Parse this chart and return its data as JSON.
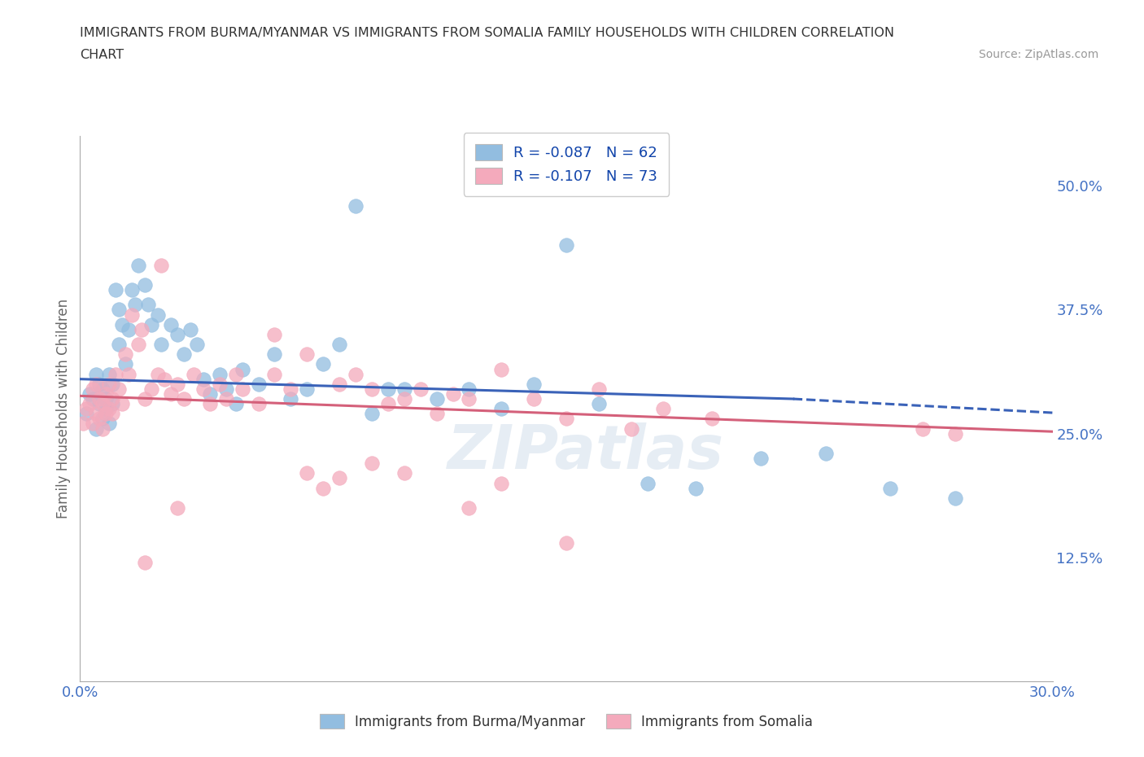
{
  "title_line1": "IMMIGRANTS FROM BURMA/MYANMAR VS IMMIGRANTS FROM SOMALIA FAMILY HOUSEHOLDS WITH CHILDREN CORRELATION",
  "title_line2": "CHART",
  "source": "Source: ZipAtlas.com",
  "xlabel": "Immigrants from Burma/Myanmar",
  "ylabel": "Family Households with Children",
  "xlim": [
    0.0,
    0.3
  ],
  "ylim": [
    0.0,
    0.55
  ],
  "yticks": [
    0.0,
    0.125,
    0.25,
    0.375,
    0.5
  ],
  "ytick_labels": [
    "",
    "12.5%",
    "25.0%",
    "37.5%",
    "50.0%"
  ],
  "xticks": [
    0.0,
    0.05,
    0.1,
    0.15,
    0.2,
    0.25,
    0.3
  ],
  "legend_r1": "R = -0.087",
  "legend_n1": "N = 62",
  "legend_r2": "R = -0.107",
  "legend_n2": "N = 73",
  "blue_color": "#92BDE0",
  "pink_color": "#F4AABC",
  "blue_line_color": "#3A62B8",
  "pink_line_color": "#D4607A",
  "r1": -0.087,
  "n1": 62,
  "r2": -0.107,
  "n2": 73,
  "watermark": "ZIPatlas",
  "grid_color": "#CCCCCC",
  "title_color": "#333333",
  "axis_label_color": "#666666",
  "tick_color": "#4472C4",
  "background_color": "#FFFFFF",
  "blue_scatter": {
    "x": [
      0.002,
      0.003,
      0.004,
      0.005,
      0.005,
      0.006,
      0.006,
      0.007,
      0.007,
      0.008,
      0.008,
      0.009,
      0.009,
      0.01,
      0.01,
      0.011,
      0.012,
      0.012,
      0.013,
      0.014,
      0.015,
      0.016,
      0.017,
      0.018,
      0.02,
      0.021,
      0.022,
      0.024,
      0.025,
      0.028,
      0.03,
      0.032,
      0.034,
      0.036,
      0.038,
      0.04,
      0.043,
      0.045,
      0.048,
      0.05,
      0.055,
      0.06,
      0.065,
      0.07,
      0.075,
      0.08,
      0.085,
      0.09,
      0.095,
      0.1,
      0.11,
      0.12,
      0.13,
      0.14,
      0.15,
      0.16,
      0.175,
      0.19,
      0.21,
      0.23,
      0.25,
      0.27
    ],
    "y": [
      0.27,
      0.29,
      0.285,
      0.31,
      0.255,
      0.28,
      0.3,
      0.265,
      0.295,
      0.285,
      0.275,
      0.31,
      0.26,
      0.3,
      0.28,
      0.395,
      0.375,
      0.34,
      0.36,
      0.32,
      0.355,
      0.395,
      0.38,
      0.42,
      0.4,
      0.38,
      0.36,
      0.37,
      0.34,
      0.36,
      0.35,
      0.33,
      0.355,
      0.34,
      0.305,
      0.29,
      0.31,
      0.295,
      0.28,
      0.315,
      0.3,
      0.33,
      0.285,
      0.295,
      0.32,
      0.34,
      0.48,
      0.27,
      0.295,
      0.295,
      0.285,
      0.295,
      0.275,
      0.3,
      0.44,
      0.28,
      0.2,
      0.195,
      0.225,
      0.23,
      0.195,
      0.185
    ]
  },
  "pink_scatter": {
    "x": [
      0.001,
      0.002,
      0.003,
      0.004,
      0.004,
      0.005,
      0.005,
      0.006,
      0.006,
      0.007,
      0.007,
      0.008,
      0.008,
      0.009,
      0.009,
      0.01,
      0.01,
      0.011,
      0.012,
      0.013,
      0.014,
      0.015,
      0.016,
      0.018,
      0.019,
      0.02,
      0.022,
      0.024,
      0.026,
      0.028,
      0.03,
      0.032,
      0.035,
      0.038,
      0.04,
      0.043,
      0.045,
      0.048,
      0.05,
      0.055,
      0.06,
      0.065,
      0.07,
      0.075,
      0.08,
      0.085,
      0.09,
      0.095,
      0.1,
      0.105,
      0.11,
      0.115,
      0.12,
      0.13,
      0.14,
      0.15,
      0.16,
      0.17,
      0.18,
      0.195,
      0.02,
      0.025,
      0.03,
      0.06,
      0.07,
      0.08,
      0.09,
      0.1,
      0.12,
      0.13,
      0.15,
      0.26,
      0.27
    ],
    "y": [
      0.26,
      0.275,
      0.28,
      0.295,
      0.26,
      0.27,
      0.3,
      0.265,
      0.285,
      0.28,
      0.255,
      0.29,
      0.27,
      0.275,
      0.3,
      0.285,
      0.27,
      0.31,
      0.295,
      0.28,
      0.33,
      0.31,
      0.37,
      0.34,
      0.355,
      0.285,
      0.295,
      0.31,
      0.305,
      0.29,
      0.3,
      0.285,
      0.31,
      0.295,
      0.28,
      0.3,
      0.285,
      0.31,
      0.295,
      0.28,
      0.31,
      0.295,
      0.33,
      0.195,
      0.3,
      0.31,
      0.295,
      0.28,
      0.285,
      0.295,
      0.27,
      0.29,
      0.285,
      0.315,
      0.285,
      0.265,
      0.295,
      0.255,
      0.275,
      0.265,
      0.12,
      0.42,
      0.175,
      0.35,
      0.21,
      0.205,
      0.22,
      0.21,
      0.175,
      0.2,
      0.14,
      0.255,
      0.25
    ]
  },
  "blue_line": {
    "x0": 0.0,
    "x1": 0.22,
    "x2": 0.3,
    "y0": 0.305,
    "y1": 0.285,
    "y2": 0.271
  },
  "pink_line": {
    "x0": 0.0,
    "x1": 0.3,
    "y0": 0.288,
    "y1": 0.252
  }
}
